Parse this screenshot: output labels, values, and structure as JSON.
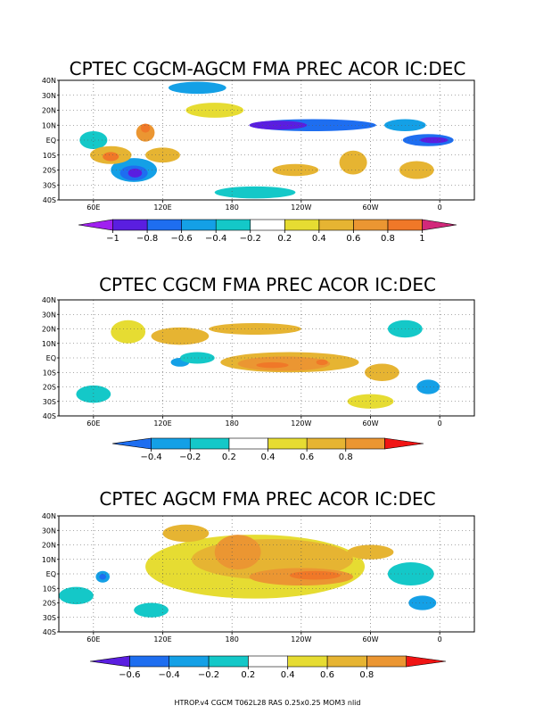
{
  "footer": "HTROP.v4 CGCM T062L28 RAS 0.25x0.25 MOM3 nlid",
  "colors": {
    "-1": "#a020f0",
    "-0.8": "#5a1ee0",
    "-0.6": "#1e6ef0",
    "-0.4": "#14a0e6",
    "-0.2": "#14c8c8",
    "0.2": "#e6dc32",
    "0.4": "#e6b432",
    "0.6": "#eb9632",
    "0.8": "#f07828",
    "1": "#f01e14",
    "1+": "#d2287a",
    "0.8+": "#f01414"
  },
  "chart_data": [
    {
      "type": "heatmap",
      "title": "CPTEC CGCM-AGCM FMA PREC ACOR IC:DEC",
      "variable": "precipitation anomaly correlation",
      "lon_ticks": [
        "60E",
        "120E",
        "180",
        "120W",
        "60W",
        "0"
      ],
      "lon_values": [
        60,
        120,
        180,
        240,
        300,
        360
      ],
      "lat_ticks": [
        "40N",
        "30N",
        "20N",
        "10N",
        "EQ",
        "10S",
        "20S",
        "30S",
        "40S"
      ],
      "lat_values": [
        40,
        30,
        20,
        10,
        0,
        -10,
        -20,
        -30,
        -40
      ],
      "xlim": [
        30,
        390
      ],
      "ylim": [
        -40,
        40
      ],
      "colorbar": {
        "labels": [
          "−1",
          "−0.8",
          "−0.6",
          "−0.4",
          "−0.2",
          "0.2",
          "0.4",
          "0.6",
          "0.8",
          "1"
        ],
        "levels": [
          -1,
          -0.8,
          -0.6,
          -0.4,
          -0.2,
          0.2,
          0.4,
          0.6,
          0.8,
          1
        ],
        "bins": [
          "-1",
          "-0.8",
          "-0.6",
          "-0.4",
          "-0.2",
          "0",
          "0.2",
          "0.4",
          "0.6",
          "0.8",
          "1"
        ],
        "end_low": "-1",
        "end_high": "1+"
      },
      "features": [
        {
          "level": "-0.6",
          "lon": 250,
          "lat": 10,
          "rlon": 55,
          "rlat": 4
        },
        {
          "level": "-0.8",
          "lon": 220,
          "lat": 10,
          "rlon": 25,
          "rlat": 3
        },
        {
          "level": "-0.6",
          "lon": 350,
          "lat": 0,
          "rlon": 22,
          "rlat": 4
        },
        {
          "level": "-0.8",
          "lon": 355,
          "lat": 0,
          "rlon": 12,
          "rlat": 2
        },
        {
          "level": "-0.4",
          "lon": 95,
          "lat": -20,
          "rlon": 20,
          "rlat": 8
        },
        {
          "level": "-0.6",
          "lon": 95,
          "lat": -22,
          "rlon": 12,
          "rlat": 5
        },
        {
          "level": "-0.8",
          "lon": 96,
          "lat": -22,
          "rlon": 6,
          "rlat": 3
        },
        {
          "level": "-0.4",
          "lon": 150,
          "lat": 35,
          "rlon": 25,
          "rlat": 4
        },
        {
          "level": "-0.4",
          "lon": 330,
          "lat": 10,
          "rlon": 18,
          "rlat": 4
        },
        {
          "level": "-0.2",
          "lon": 200,
          "lat": -35,
          "rlon": 35,
          "rlat": 4
        },
        {
          "level": "-0.2",
          "lon": 60,
          "lat": 0,
          "rlon": 12,
          "rlat": 6
        },
        {
          "level": "0.4",
          "lon": 75,
          "lat": -10,
          "rlon": 18,
          "rlat": 6
        },
        {
          "level": "0.8",
          "lon": 75,
          "lat": -11,
          "rlon": 7,
          "rlat": 3
        },
        {
          "level": "0.6",
          "lon": 105,
          "lat": 5,
          "rlon": 8,
          "rlat": 6
        },
        {
          "level": "0.8",
          "lon": 105,
          "lat": 8,
          "rlon": 4,
          "rlat": 3
        },
        {
          "level": "0.4",
          "lon": 120,
          "lat": -10,
          "rlon": 15,
          "rlat": 5
        },
        {
          "level": "0.4",
          "lon": 285,
          "lat": -15,
          "rlon": 12,
          "rlat": 8
        },
        {
          "level": "0.4",
          "lon": 235,
          "lat": -20,
          "rlon": 20,
          "rlat": 4
        },
        {
          "level": "0.2",
          "lon": 165,
          "lat": 20,
          "rlon": 25,
          "rlat": 5
        },
        {
          "level": "0.4",
          "lon": 340,
          "lat": -20,
          "rlon": 15,
          "rlat": 6
        }
      ]
    },
    {
      "type": "heatmap",
      "title": "CPTEC CGCM FMA PREC ACOR IC:DEC",
      "variable": "precipitation anomaly correlation",
      "lon_ticks": [
        "60E",
        "120E",
        "180",
        "120W",
        "60W",
        "0"
      ],
      "lon_values": [
        60,
        120,
        180,
        240,
        300,
        360
      ],
      "lat_ticks": [
        "40N",
        "30N",
        "20N",
        "10N",
        "EQ",
        "10S",
        "20S",
        "30S",
        "40S"
      ],
      "lat_values": [
        40,
        30,
        20,
        10,
        0,
        -10,
        -20,
        -30,
        -40
      ],
      "xlim": [
        30,
        390
      ],
      "ylim": [
        -40,
        40
      ],
      "colorbar": {
        "labels": [
          "−0.4",
          "−0.2",
          "0.2",
          "0.4",
          "0.6",
          "0.8"
        ],
        "levels": [
          -0.4,
          -0.2,
          0.2,
          0.4,
          0.6,
          0.8
        ],
        "bins": [
          "-0.6",
          "-0.4",
          "-0.2",
          "0",
          "0.2",
          "0.4",
          "0.6",
          "0.8"
        ],
        "end_low": "-0.6",
        "end_high": "0.8+"
      },
      "features": [
        {
          "level": "0.4",
          "lon": 230,
          "lat": -3,
          "rlon": 60,
          "rlat": 7
        },
        {
          "level": "0.6",
          "lon": 225,
          "lat": -4,
          "rlon": 40,
          "rlat": 5
        },
        {
          "level": "0.8",
          "lon": 215,
          "lat": -5,
          "rlon": 14,
          "rlat": 2
        },
        {
          "level": "0.8",
          "lon": 258,
          "lat": -3,
          "rlon": 5,
          "rlat": 2
        },
        {
          "level": "0.4",
          "lon": 135,
          "lat": 15,
          "rlon": 25,
          "rlat": 6
        },
        {
          "level": "0.2",
          "lon": 90,
          "lat": 18,
          "rlon": 15,
          "rlat": 8
        },
        {
          "level": "0.4",
          "lon": 200,
          "lat": 20,
          "rlon": 40,
          "rlat": 4
        },
        {
          "level": "-0.4",
          "lon": 135,
          "lat": -3,
          "rlon": 8,
          "rlat": 3
        },
        {
          "level": "-0.2",
          "lon": 150,
          "lat": 0,
          "rlon": 15,
          "rlat": 4
        },
        {
          "level": "-0.2",
          "lon": 60,
          "lat": -25,
          "rlon": 15,
          "rlat": 6
        },
        {
          "level": "-0.2",
          "lon": 330,
          "lat": 20,
          "rlon": 15,
          "rlat": 6
        },
        {
          "level": "-0.4",
          "lon": 350,
          "lat": -20,
          "rlon": 10,
          "rlat": 5
        },
        {
          "level": "0.4",
          "lon": 310,
          "lat": -10,
          "rlon": 15,
          "rlat": 6
        },
        {
          "level": "0.2",
          "lon": 300,
          "lat": -30,
          "rlon": 20,
          "rlat": 5
        }
      ]
    },
    {
      "type": "heatmap",
      "title": "CPTEC AGCM FMA PREC ACOR IC:DEC",
      "variable": "precipitation anomaly correlation",
      "lon_ticks": [
        "60E",
        "120E",
        "180",
        "120W",
        "60W",
        "0"
      ],
      "lon_values": [
        60,
        120,
        180,
        240,
        300,
        360
      ],
      "lat_ticks": [
        "40N",
        "30N",
        "20N",
        "10N",
        "EQ",
        "10S",
        "20S",
        "30S",
        "40S"
      ],
      "lat_values": [
        40,
        30,
        20,
        10,
        0,
        -10,
        -20,
        -30,
        -40
      ],
      "xlim": [
        30,
        390
      ],
      "ylim": [
        -40,
        40
      ],
      "colorbar": {
        "labels": [
          "−0.6",
          "−0.4",
          "−0.2",
          "0.2",
          "0.4",
          "0.6",
          "0.8"
        ],
        "levels": [
          -0.6,
          -0.4,
          -0.2,
          0.2,
          0.4,
          0.6,
          0.8
        ],
        "bins": [
          "-0.8",
          "-0.6",
          "-0.4",
          "-0.2",
          "0",
          "0.2",
          "0.4",
          "0.6",
          "0.8"
        ],
        "end_low": "-0.8",
        "end_high": "0.8+"
      },
      "features": [
        {
          "level": "0.2",
          "lon": 200,
          "lat": 5,
          "rlon": 95,
          "rlat": 22
        },
        {
          "level": "0.4",
          "lon": 215,
          "lat": 10,
          "rlon": 70,
          "rlat": 14
        },
        {
          "level": "0.6",
          "lon": 185,
          "lat": 15,
          "rlon": 20,
          "rlat": 12
        },
        {
          "level": "0.6",
          "lon": 240,
          "lat": -2,
          "rlon": 45,
          "rlat": 6
        },
        {
          "level": "0.8",
          "lon": 252,
          "lat": -1,
          "rlon": 22,
          "rlat": 3
        },
        {
          "level": "-0.4",
          "lon": 68,
          "lat": -2,
          "rlon": 6,
          "rlat": 4
        },
        {
          "level": "-0.6",
          "lon": 68,
          "lat": -2,
          "rlon": 3,
          "rlat": 2
        },
        {
          "level": "-0.2",
          "lon": 45,
          "lat": -15,
          "rlon": 15,
          "rlat": 6
        },
        {
          "level": "-0.2",
          "lon": 335,
          "lat": 0,
          "rlon": 20,
          "rlat": 8
        },
        {
          "level": "-0.4",
          "lon": 345,
          "lat": -20,
          "rlon": 12,
          "rlat": 5
        },
        {
          "level": "0.4",
          "lon": 300,
          "lat": 15,
          "rlon": 20,
          "rlat": 5
        },
        {
          "level": "-0.2",
          "lon": 110,
          "lat": -25,
          "rlon": 15,
          "rlat": 5
        },
        {
          "level": "0.4",
          "lon": 140,
          "lat": 28,
          "rlon": 20,
          "rlat": 6
        }
      ]
    }
  ]
}
